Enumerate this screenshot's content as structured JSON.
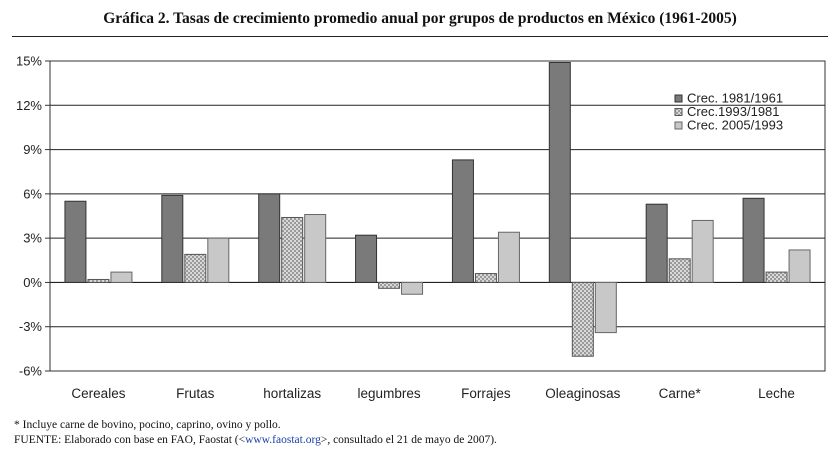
{
  "title": "Gráfica 2. Tasas de crecimiento promedio anual por grupos de productos en México (1961-2005)",
  "footnote": "* Incluye carne de bovino, pocino, caprino, ovino y pollo.",
  "source": {
    "prefix": "FUENTE: Elaborado con base en FAO, Faostat (<",
    "link": "www.faostat.org",
    "suffix": ">, consultado el 21 de mayo de 2007)."
  },
  "colors": {
    "series": [
      "#7a7a7a",
      "#c4c4c4",
      "#c8c8c8"
    ],
    "axis": "#333333",
    "grid": "#222222"
  },
  "chart_data": {
    "type": "bar",
    "title": "Gráfica 2. Tasas de crecimiento promedio anual por grupos de productos en México (1961-2005)",
    "xlabel": "",
    "ylabel": "",
    "ylim": [
      -6,
      15
    ],
    "yticks": [
      15,
      12,
      9,
      6,
      3,
      0,
      -3,
      -6
    ],
    "ytick_labels": [
      "15%",
      "12%",
      "9%",
      "6%",
      "3%",
      "0%",
      "-3%",
      "-6%"
    ],
    "grid": true,
    "legend_position": "top-right",
    "categories": [
      "Cereales",
      "Frutas",
      "hortalizas",
      "legumbres",
      "Forrajes",
      "Oleaginosas",
      "Carne*",
      "Leche"
    ],
    "series": [
      {
        "name": "Crec. 1981/1961",
        "values": [
          5.5,
          5.9,
          6.0,
          3.2,
          8.3,
          14.9,
          5.3,
          5.7
        ]
      },
      {
        "name": "Crec.1993/1981",
        "values": [
          0.2,
          1.9,
          4.4,
          -0.4,
          0.6,
          -5.0,
          1.6,
          0.7
        ]
      },
      {
        "name": "Crec. 2005/1993",
        "values": [
          0.7,
          3.0,
          4.6,
          -0.8,
          3.4,
          -3.4,
          4.2,
          2.2
        ]
      }
    ]
  }
}
